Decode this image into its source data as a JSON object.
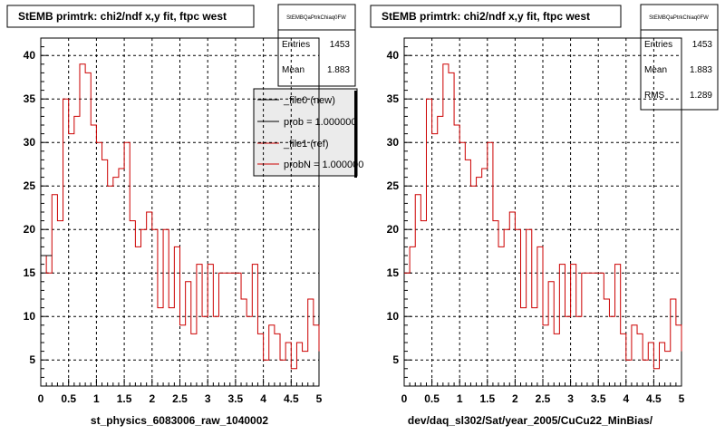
{
  "colors": {
    "ref_line": "#cc0000",
    "new_line": "#000000",
    "grid": "#000000"
  },
  "chart_data": [
    {
      "type": "histogram",
      "title": "StEMB primtrk: chi2/ndf x,y fit, ftpc west",
      "xlabel": "st_physics_6083006_raw_1040002",
      "xlim": [
        0,
        5
      ],
      "ylim": [
        2,
        42
      ],
      "xticks": [
        "0",
        "0.5",
        "1",
        "1.5",
        "2",
        "2.5",
        "3",
        "3.5",
        "4",
        "4.5",
        "5"
      ],
      "yticks": [
        "5",
        "10",
        "15",
        "20",
        "25",
        "30",
        "35",
        "40"
      ],
      "grid": true,
      "stats": {
        "title": "StEMBQaPtrkChiaq0FW",
        "entries_label": "Entries",
        "entries": "1453",
        "mean_label": "Mean",
        "mean": "1.883"
      },
      "legend": {
        "placement": "top-right",
        "entries": [
          {
            "label": "_file0 (new)",
            "color": "#000000"
          },
          {
            "label": "prob = 1.000000",
            "color": "#000000"
          },
          {
            "label": "_file1 (ref)",
            "color": "#cc0000"
          },
          {
            "label": "probN = 1.000000",
            "color": "#cc0000"
          }
        ]
      },
      "bin_width": 0.1,
      "series": [
        {
          "values": [
            17,
            15,
            24,
            21,
            35,
            31,
            33,
            39,
            38,
            32,
            30,
            28,
            25,
            26,
            27,
            30,
            21,
            18,
            20,
            22,
            20,
            11,
            20,
            11,
            18,
            9,
            14,
            8,
            16,
            10,
            16,
            10,
            15,
            15,
            15,
            15,
            12,
            10,
            16,
            8,
            5,
            9,
            8,
            5,
            7,
            4,
            7,
            6,
            12,
            9,
            6
          ]
        },
        {
          "values": [
            17,
            17
          ]
        }
      ]
    },
    {
      "type": "histogram",
      "title": "StEMB primtrk: chi2/ndf x,y fit, ftpc west",
      "xlabel": "dev/daq_sl302/Sat/year_2005/CuCu22_MinBias/",
      "xlim": [
        0,
        5
      ],
      "ylim": [
        2,
        42
      ],
      "xticks": [
        "0",
        "0.5",
        "1",
        "1.5",
        "2",
        "2.5",
        "3",
        "3.5",
        "4",
        "4.5",
        "5"
      ],
      "yticks": [
        "5",
        "10",
        "15",
        "20",
        "25",
        "30",
        "35",
        "40"
      ],
      "grid": true,
      "stats": {
        "title": "StEMBQaPtrkChiaq0FW",
        "entries_label": "Entries",
        "entries": "1453",
        "mean_label": "Mean",
        "mean": "1.883",
        "rms_label": "RMS",
        "rms": "1.289"
      },
      "bin_width": 0.1,
      "series": [
        {
          "values": [
            15,
            18,
            24,
            21,
            35,
            31,
            33,
            39,
            38,
            32,
            30,
            28,
            25,
            26,
            27,
            30,
            21,
            18,
            20,
            22,
            20,
            11,
            20,
            11,
            18,
            9,
            14,
            8,
            16,
            10,
            16,
            10,
            15,
            15,
            15,
            15,
            12,
            10,
            16,
            8,
            5,
            9,
            8,
            5,
            7,
            4,
            7,
            6,
            12,
            9,
            6
          ]
        }
      ]
    }
  ]
}
